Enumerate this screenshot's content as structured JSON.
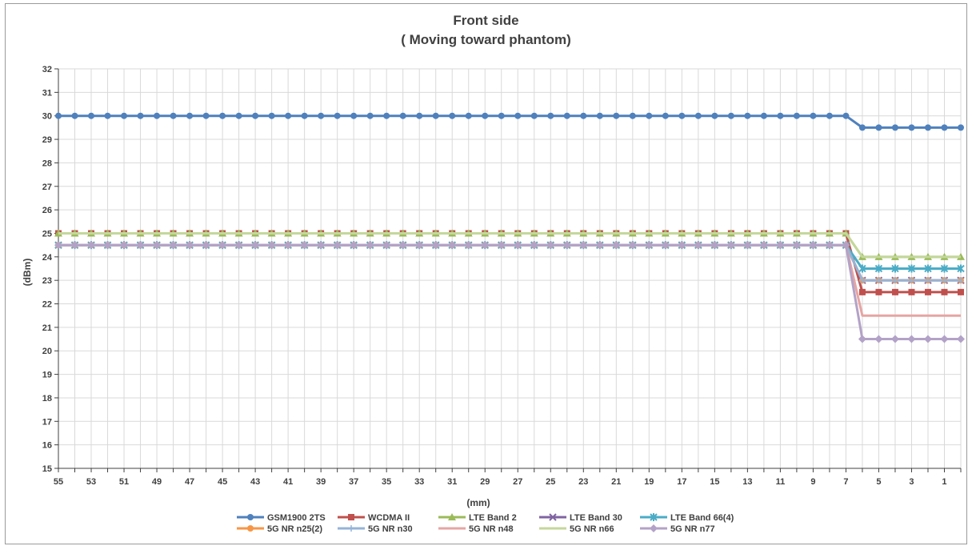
{
  "chart_data": {
    "type": "line",
    "title": "Front side",
    "subtitle": "( Moving toward phantom)",
    "xlabel": "(mm)",
    "ylabel": "(dBm)",
    "ylim": [
      15,
      32
    ],
    "x_reversed": true,
    "grid": true,
    "legend_position": "bottom",
    "yticks": [
      15,
      16,
      17,
      18,
      19,
      20,
      21,
      22,
      23,
      24,
      25,
      26,
      27,
      28,
      29,
      30,
      31,
      32
    ],
    "xtick_labels": [
      55,
      53,
      51,
      49,
      47,
      45,
      43,
      41,
      39,
      37,
      35,
      33,
      31,
      29,
      27,
      25,
      23,
      21,
      19,
      17,
      15,
      13,
      11,
      9,
      7,
      5,
      3,
      1
    ],
    "x": [
      55,
      54,
      53,
      52,
      51,
      50,
      49,
      48,
      47,
      46,
      45,
      44,
      43,
      42,
      41,
      40,
      39,
      38,
      37,
      36,
      35,
      34,
      33,
      32,
      31,
      30,
      29,
      28,
      27,
      26,
      25,
      24,
      23,
      22,
      21,
      20,
      19,
      18,
      17,
      16,
      15,
      14,
      13,
      12,
      11,
      10,
      9,
      8,
      7,
      6,
      5,
      4,
      3,
      2,
      1,
      0
    ],
    "series": [
      {
        "name": "GSM1900 2TS",
        "color": "#4f81bd",
        "marker": "circle",
        "before": 30,
        "after": 29.5
      },
      {
        "name": "WCDMA II",
        "color": "#c0504d",
        "marker": "square",
        "before": 25,
        "after": 22.5
      },
      {
        "name": "LTE Band 2",
        "color": "#9bbb59",
        "marker": "triangle",
        "before": 25,
        "after": 24
      },
      {
        "name": "LTE Band 30",
        "color": "#8064a2",
        "marker": "x",
        "before": 24.5,
        "after": 23
      },
      {
        "name": "LTE Band 66(4)",
        "color": "#4bacc6",
        "marker": "star",
        "before": 24.5,
        "after": 23.5
      },
      {
        "name": "5G NR n25(2)",
        "color": "#f79646",
        "marker": "circle",
        "before": 24.5,
        "after": 23
      },
      {
        "name": "5G NR n30",
        "color": "#95b3d7",
        "marker": "plus",
        "before": 24.5,
        "after": 23
      },
      {
        "name": "5G NR n48",
        "color": "#e6a5a3",
        "marker": "none",
        "before": 24.5,
        "after": 21.5
      },
      {
        "name": "5G NR n66",
        "color": "#c4d79b",
        "marker": "none",
        "before": 25,
        "after": 24
      },
      {
        "name": "5G NR n77",
        "color": "#b3a2c7",
        "marker": "diamond",
        "before": 24.5,
        "after": 20.5
      }
    ],
    "change_after_x": 7
  }
}
